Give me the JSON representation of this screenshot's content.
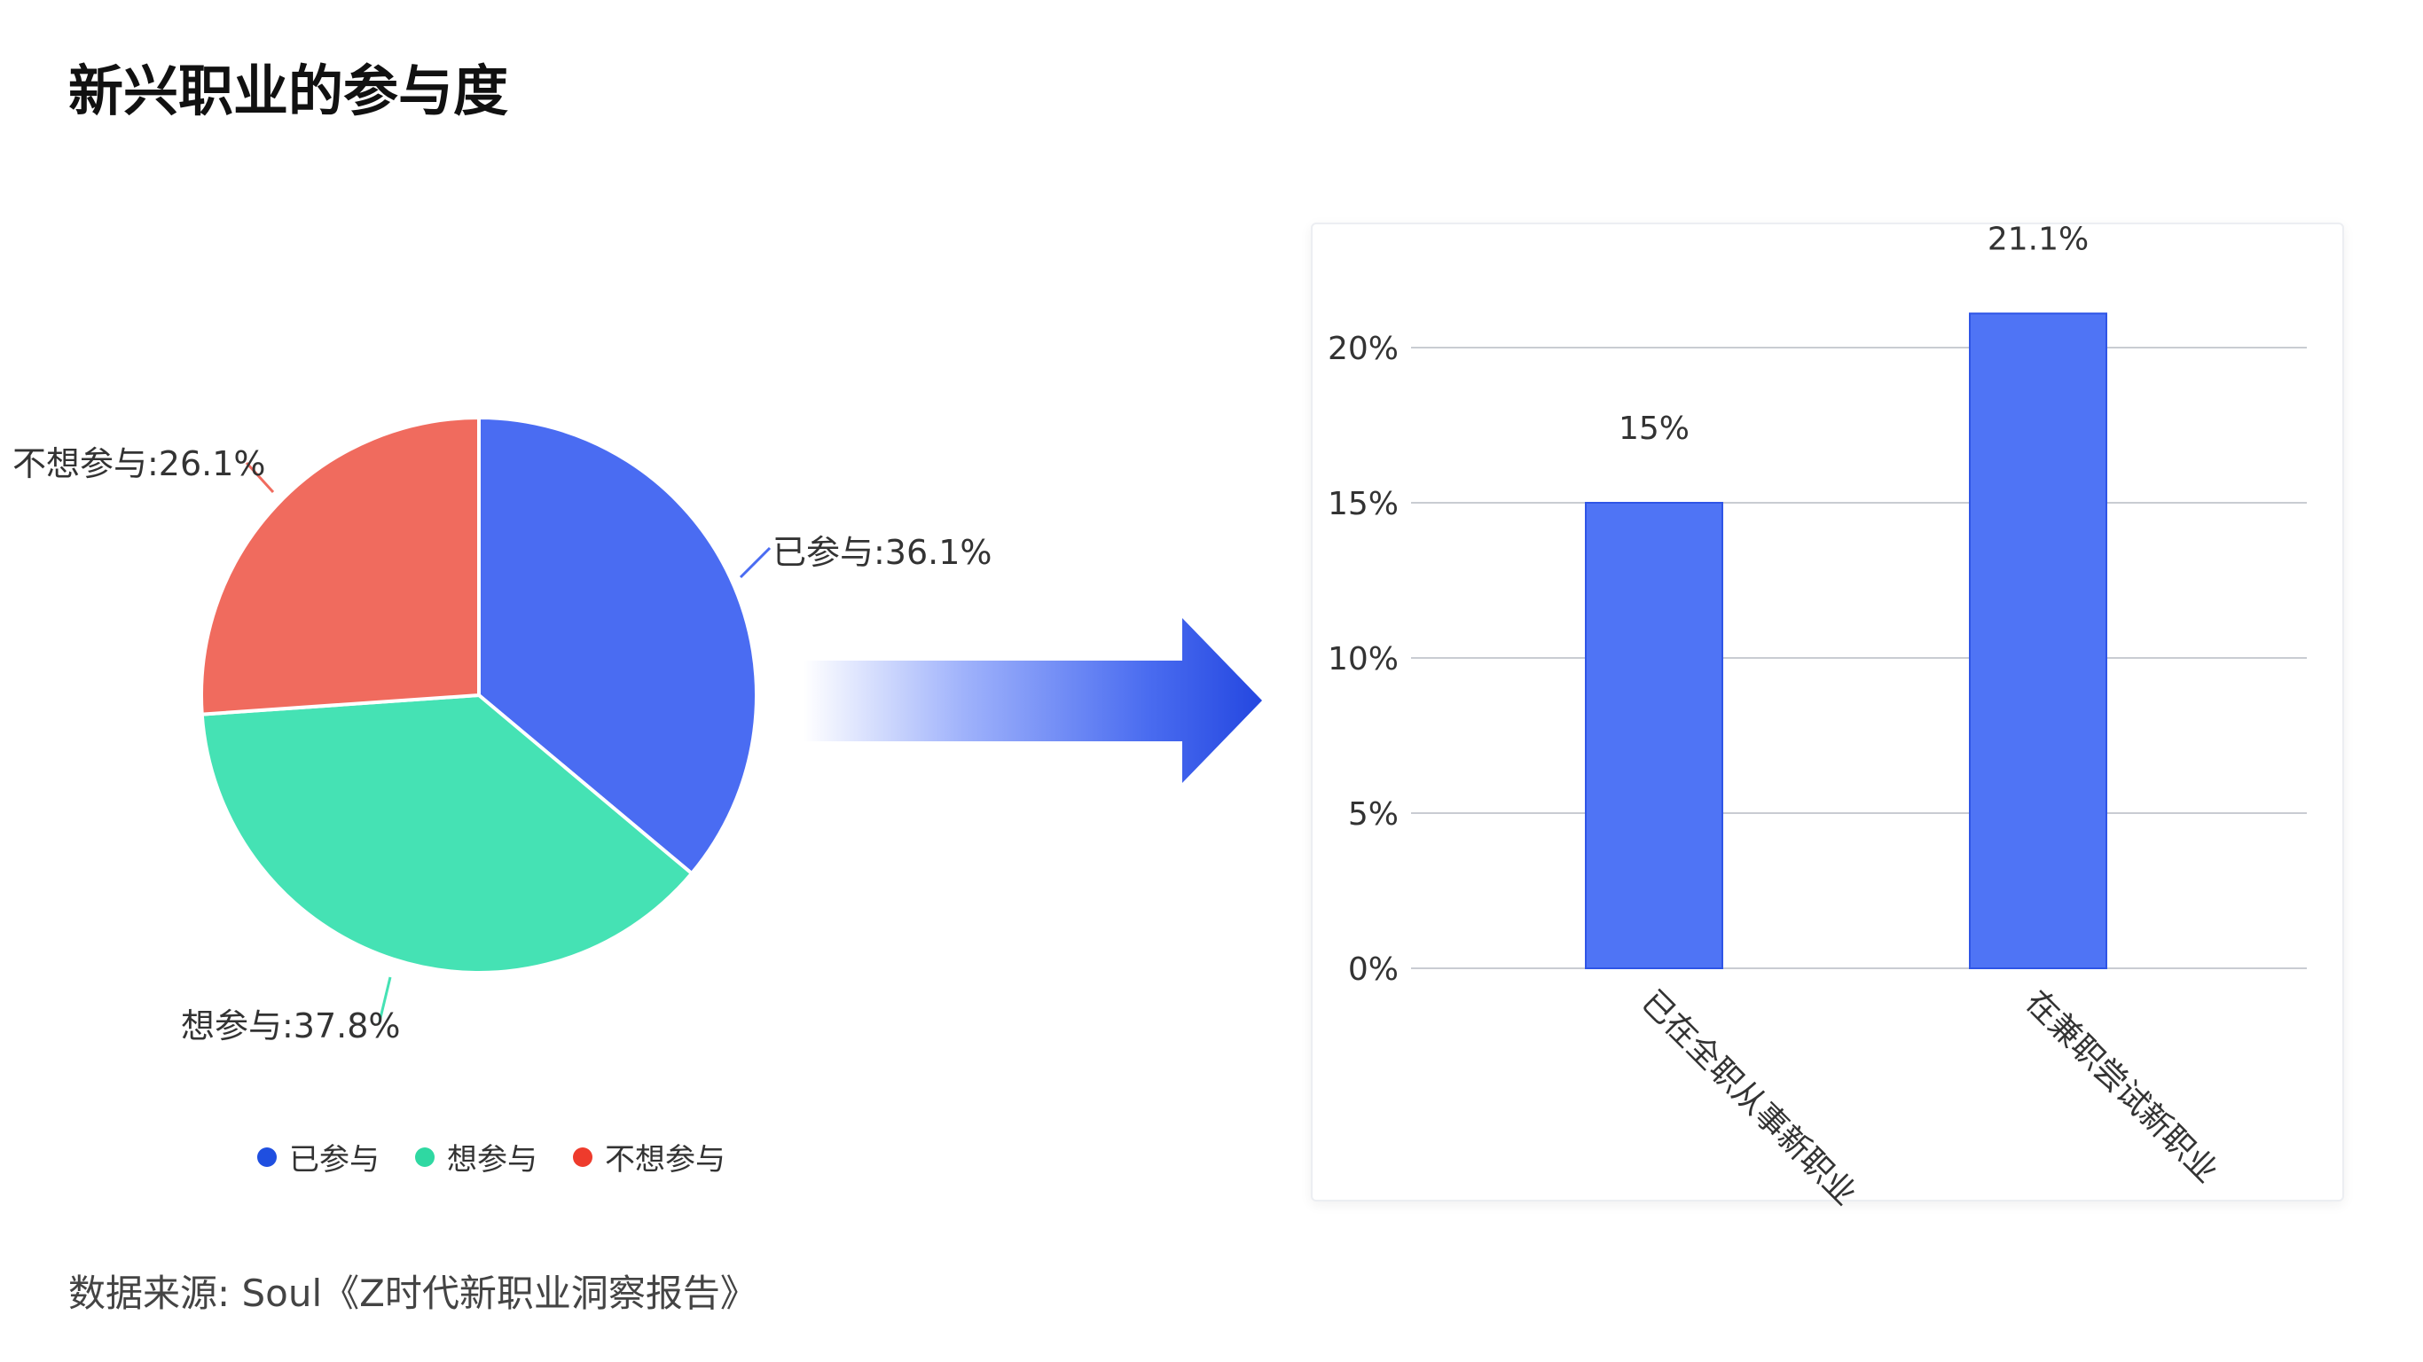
{
  "title": "新兴职业的参与度",
  "source": "数据来源: Soul《Z时代新职业洞察报告》",
  "chart_data": [
    {
      "type": "pie",
      "categories": [
        "已参与",
        "想参与",
        "不想参与"
      ],
      "values": [
        36.1,
        37.8,
        26.1
      ],
      "labels": [
        "已参与:36.1%",
        "想参与:37.8%",
        "不想参与:26.1%"
      ],
      "colors": [
        "#4a6cf2",
        "#45e2b4",
        "#f06b5e"
      ],
      "legend": {
        "position": "bottom",
        "colors": [
          "#1f4fe0",
          "#2fd8a2",
          "#ee3b2c"
        ]
      }
    },
    {
      "type": "bar",
      "categories": [
        "已在全职从事新职业",
        "在兼职尝试新职业"
      ],
      "values": [
        15,
        21.1
      ],
      "data_labels": [
        "15%",
        "21.1%"
      ],
      "yticks": [
        "0%",
        "5%",
        "10%",
        "15%",
        "20%"
      ],
      "ylim": [
        0,
        20
      ],
      "grid": true,
      "color": "#4f74f5"
    }
  ]
}
